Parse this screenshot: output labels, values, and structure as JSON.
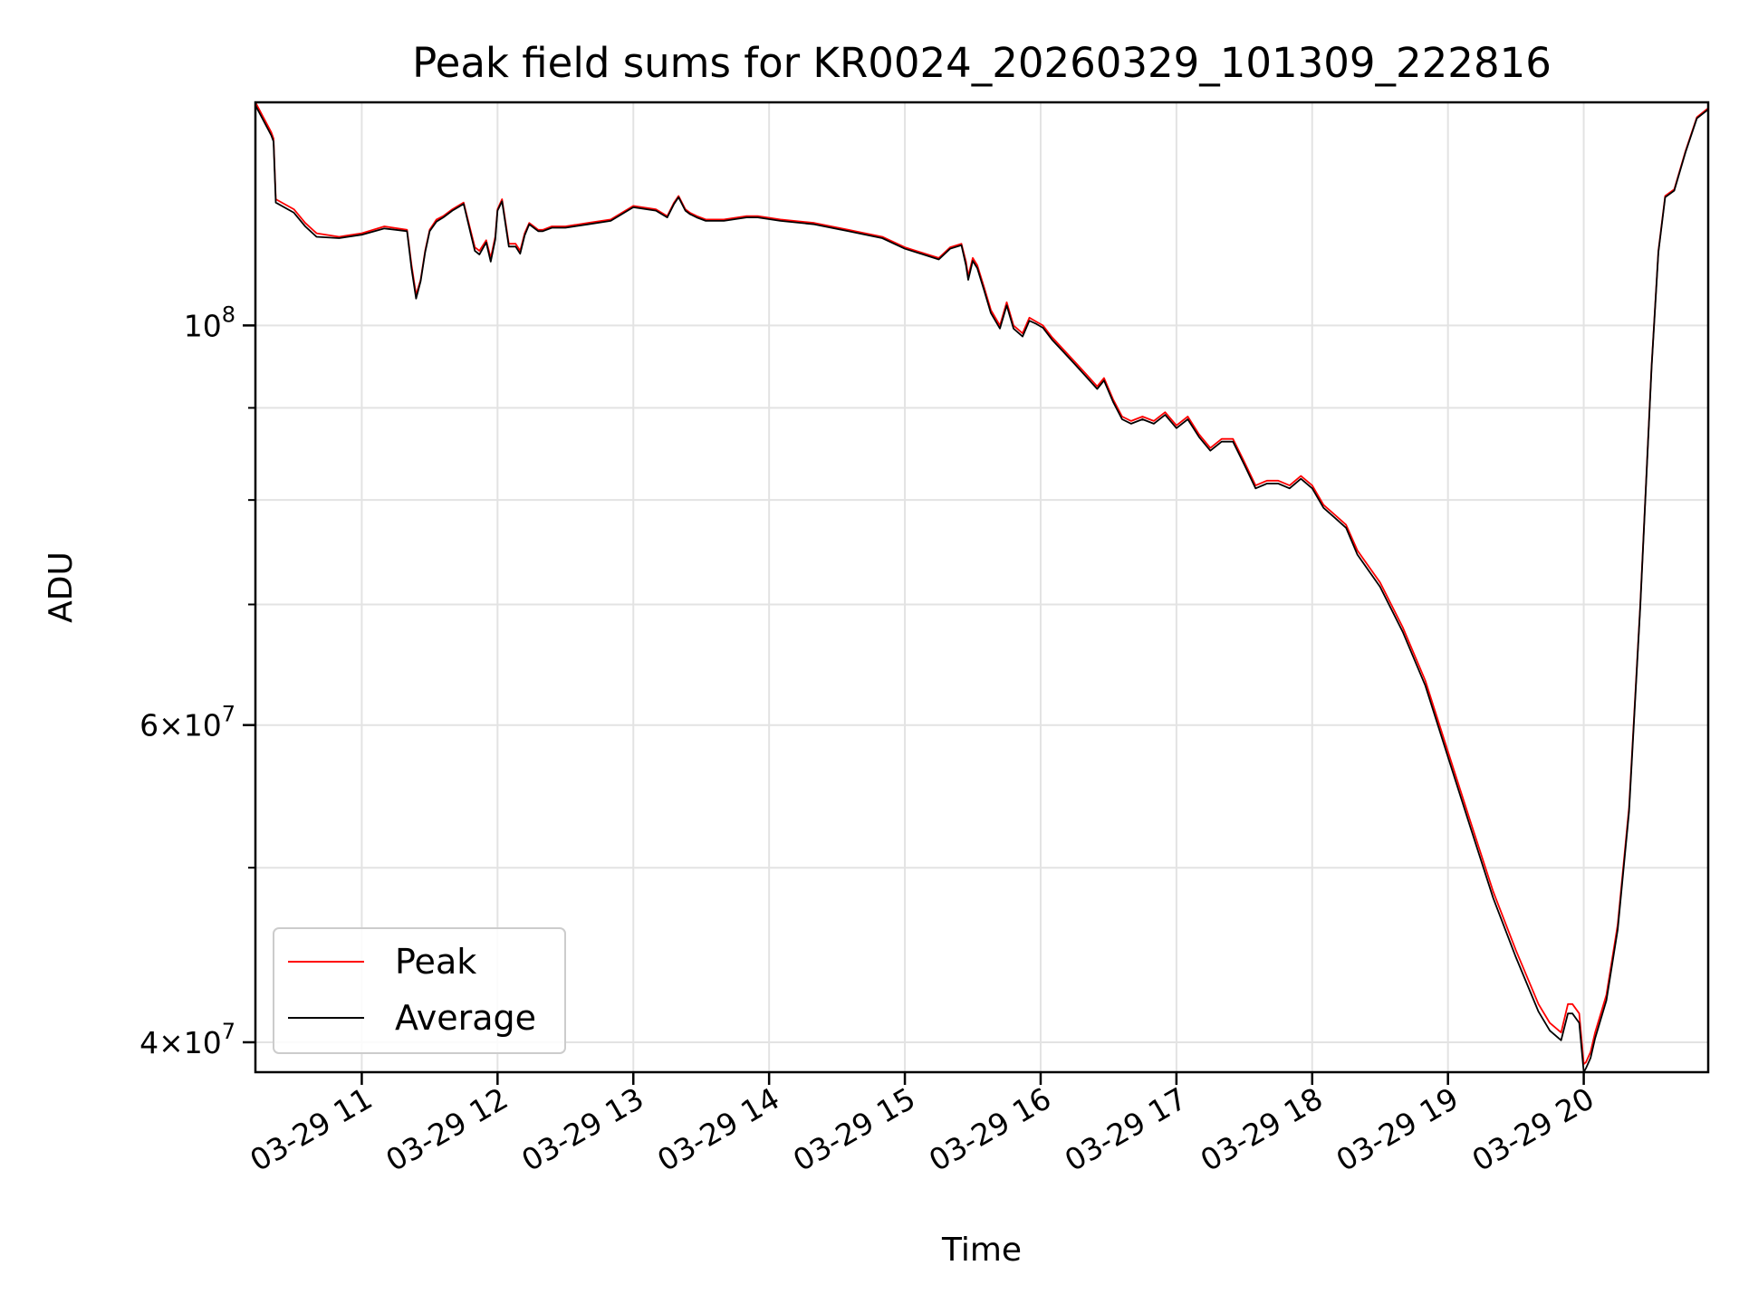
{
  "chart_data": {
    "type": "line",
    "title": "Peak field sums for KR0024_20260329_101309_222816",
    "xlabel": "Time",
    "ylabel": "ADU",
    "x_unit": "hours",
    "xlim": [
      "03-29 10:13",
      "03-29 20:55"
    ],
    "ylim": [
      38500000,
      133000000
    ],
    "y_scale": "log",
    "grid": true,
    "legend_position": "lower-left",
    "x_ticks": [
      {
        "value": "03-29 11",
        "label": "03-29 11"
      },
      {
        "value": "03-29 12",
        "label": "03-29 12"
      },
      {
        "value": "03-29 13",
        "label": "03-29 13"
      },
      {
        "value": "03-29 14",
        "label": "03-29 14"
      },
      {
        "value": "03-29 15",
        "label": "03-29 15"
      },
      {
        "value": "03-29 16",
        "label": "03-29 16"
      },
      {
        "value": "03-29 17",
        "label": "03-29 17"
      },
      {
        "value": "03-29 18",
        "label": "03-29 18"
      },
      {
        "value": "03-29 19",
        "label": "03-29 19"
      },
      {
        "value": "03-29 20",
        "label": "03-29 20"
      }
    ],
    "y_major_ticks": [
      {
        "value": 40000000,
        "mant": "4",
        "exp": "7"
      },
      {
        "value": 60000000,
        "mant": "6",
        "exp": "7"
      },
      {
        "value": 100000000,
        "mant": "",
        "exp": "8"
      }
    ],
    "y_minor_ticks": [
      50000000,
      70000000,
      80000000,
      90000000
    ],
    "x": [
      "03-29 10:13",
      "03-29 10:20",
      "03-29 10:21",
      "03-29 10:22",
      "03-29 10:30",
      "03-29 10:35",
      "03-29 10:40",
      "03-29 10:50",
      "03-29 11:00",
      "03-29 11:10",
      "03-29 11:20",
      "03-29 11:22",
      "03-29 11:24",
      "03-29 11:26",
      "03-29 11:28",
      "03-29 11:30",
      "03-29 11:33",
      "03-29 11:36",
      "03-29 11:40",
      "03-29 11:45",
      "03-29 11:48",
      "03-29 11:50",
      "03-29 11:52",
      "03-29 11:55",
      "03-29 11:57",
      "03-29 11:59",
      "03-29 12:00",
      "03-29 12:02",
      "03-29 12:05",
      "03-29 12:08",
      "03-29 12:10",
      "03-29 12:12",
      "03-29 12:14",
      "03-29 12:16",
      "03-29 12:18",
      "03-29 12:20",
      "03-29 12:24",
      "03-29 12:30",
      "03-29 12:40",
      "03-29 12:50",
      "03-29 13:00",
      "03-29 13:10",
      "03-29 13:15",
      "03-29 13:18",
      "03-29 13:20",
      "03-29 13:23",
      "03-29 13:25",
      "03-29 13:28",
      "03-29 13:32",
      "03-29 13:40",
      "03-29 13:50",
      "03-29 13:55",
      "03-29 14:05",
      "03-29 14:20",
      "03-29 14:35",
      "03-29 14:50",
      "03-29 15:00",
      "03-29 15:10",
      "03-29 15:15",
      "03-29 15:20",
      "03-29 15:25",
      "03-29 15:27",
      "03-29 15:28",
      "03-29 15:30",
      "03-29 15:32",
      "03-29 15:35",
      "03-29 15:38",
      "03-29 15:42",
      "03-29 15:45",
      "03-29 15:48",
      "03-29 15:52",
      "03-29 15:55",
      "03-29 15:58",
      "03-29 16:01",
      "03-29 16:05",
      "03-29 16:10",
      "03-29 16:15",
      "03-29 16:20",
      "03-29 16:25",
      "03-29 16:28",
      "03-29 16:32",
      "03-29 16:36",
      "03-29 16:40",
      "03-29 16:45",
      "03-29 16:50",
      "03-29 16:55",
      "03-29 17:00",
      "03-29 17:05",
      "03-29 17:10",
      "03-29 17:15",
      "03-29 17:20",
      "03-29 17:25",
      "03-29 17:30",
      "03-29 17:35",
      "03-29 17:40",
      "03-29 17:45",
      "03-29 17:50",
      "03-29 17:55",
      "03-29 18:00",
      "03-29 18:05",
      "03-29 18:10",
      "03-29 18:15",
      "03-29 18:20",
      "03-29 18:30",
      "03-29 18:40",
      "03-29 18:50",
      "03-29 19:00",
      "03-29 19:10",
      "03-29 19:20",
      "03-29 19:30",
      "03-29 19:40",
      "03-29 19:45",
      "03-29 19:50",
      "03-29 19:53",
      "03-29 19:55",
      "03-29 19:58",
      "03-29 20:00",
      "03-29 20:01",
      "03-29 20:03",
      "03-29 20:05",
      "03-29 20:10",
      "03-29 20:15",
      "03-29 20:20",
      "03-29 20:25",
      "03-29 20:30",
      "03-29 20:33",
      "03-29 20:36",
      "03-29 20:38",
      "03-29 20:40",
      "03-29 20:45",
      "03-29 20:50",
      "03-29 20:55"
    ],
    "series": [
      {
        "name": "Peak",
        "color": "#ff0000",
        "values": [
          133000000,
          128000000,
          127000000,
          117500000,
          116000000,
          114000000,
          112500000,
          112000000,
          112500000,
          113500000,
          113000000,
          108000000,
          104000000,
          106000000,
          110000000,
          113000000,
          114500000,
          115000000,
          116000000,
          117000000,
          113000000,
          110500000,
          110000000,
          111500000,
          109000000,
          112000000,
          116000000,
          117500000,
          111000000,
          111000000,
          110000000,
          112500000,
          114000000,
          113500000,
          113000000,
          113000000,
          113500000,
          113500000,
          114000000,
          114500000,
          116500000,
          116000000,
          115000000,
          117000000,
          118000000,
          116000000,
          115500000,
          115000000,
          114500000,
          114500000,
          115000000,
          115000000,
          114500000,
          114000000,
          113000000,
          112000000,
          110500000,
          109500000,
          109000000,
          110500000,
          111000000,
          108500000,
          106500000,
          109000000,
          108000000,
          105000000,
          102000000,
          100000000,
          103000000,
          100000000,
          99000000,
          101000000,
          100500000,
          100000000,
          98500000,
          97000000,
          95500000,
          94000000,
          92500000,
          93500000,
          91000000,
          89000000,
          88500000,
          89000000,
          88500000,
          89500000,
          88000000,
          89000000,
          87000000,
          85500000,
          86500000,
          86500000,
          84000000,
          81500000,
          82000000,
          82000000,
          81500000,
          82500000,
          81500000,
          79500000,
          78500000,
          77500000,
          75000000,
          72000000,
          68000000,
          63500000,
          58000000,
          53000000,
          48500000,
          45000000,
          42000000,
          41000000,
          40500000,
          42000000,
          42000000,
          41500000,
          38900000,
          39000000,
          39500000,
          40500000,
          42500000,
          46500000,
          54000000,
          70000000,
          95000000,
          110000000,
          118000000,
          118500000,
          119000000,
          125000000,
          130500000,
          132000000
        ]
      },
      {
        "name": "Average",
        "color": "#000000",
        "values": [
          132500000,
          127500000,
          126500000,
          117000000,
          115500000,
          113500000,
          112000000,
          111800000,
          112300000,
          113200000,
          112800000,
          107500000,
          103500000,
          105800000,
          109800000,
          112800000,
          114200000,
          114800000,
          115800000,
          116800000,
          112600000,
          110000000,
          109500000,
          111200000,
          108500000,
          111600000,
          115800000,
          117200000,
          110600000,
          110600000,
          109600000,
          112200000,
          113800000,
          113300000,
          112800000,
          112800000,
          113300000,
          113300000,
          113800000,
          114300000,
          116300000,
          115800000,
          114800000,
          116800000,
          117800000,
          115800000,
          115300000,
          114800000,
          114300000,
          114300000,
          114800000,
          114800000,
          114300000,
          113800000,
          112800000,
          111800000,
          110300000,
          109300000,
          108800000,
          110300000,
          110800000,
          108000000,
          106000000,
          108600000,
          107600000,
          104600000,
          101600000,
          99600000,
          102600000,
          99600000,
          98600000,
          100600000,
          100200000,
          99700000,
          98200000,
          96700000,
          95200000,
          93700000,
          92200000,
          93200000,
          90700000,
          88700000,
          88200000,
          88700000,
          88200000,
          89200000,
          87700000,
          88700000,
          86700000,
          85200000,
          86200000,
          86200000,
          83700000,
          81200000,
          81700000,
          81700000,
          81200000,
          82200000,
          81200000,
          79200000,
          78200000,
          77200000,
          74600000,
          71600000,
          67600000,
          63100000,
          57600000,
          52600000,
          48100000,
          44600000,
          41600000,
          40600000,
          40100000,
          41500000,
          41500000,
          41000000,
          38500000,
          38700000,
          39200000,
          40200000,
          42200000,
          46200000,
          53700000,
          69800000,
          94800000,
          109800000,
          117800000,
          118300000,
          118800000,
          124800000,
          130300000,
          131800000
        ]
      }
    ]
  }
}
